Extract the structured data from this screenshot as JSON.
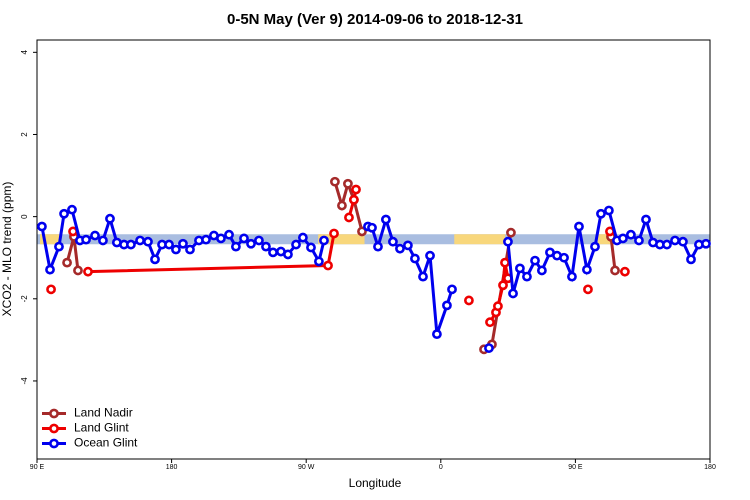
{
  "chart_data": {
    "type": "line",
    "title": "0-5N May (Ver 9)   2014-09-06 to 2018-12-31",
    "x_label": "Longitude",
    "y_label": "XCO2 - MLO trend (ppm)",
    "xlim": [
      90,
      540
    ],
    "ylim": [
      -5.9,
      4.3
    ],
    "xticks": [
      {
        "value": 90,
        "label": "90 E"
      },
      180,
      {
        "value": 270,
        "label": "90 W"
      },
      {
        "value": 360,
        "label": "0"
      },
      {
        "value": 450,
        "label": "90 E"
      },
      {
        "value": 540,
        "label": "180"
      }
    ],
    "yticks": [
      4,
      2,
      0,
      -2,
      -4
    ],
    "legend": "bottom-left",
    "reference_band": {
      "value": -0.55,
      "color": "#a9bde0",
      "highlight_color": "#f8d77c",
      "highlights": [
        [
          92,
          105
        ],
        [
          278,
          309
        ],
        [
          369,
          403
        ],
        [
          465,
          477
        ]
      ]
    },
    "series": [
      {
        "name": "Land Nadir",
        "color": "#a52a2a",
        "x": [
          110.1,
          114.7,
          117.4,
          285.9,
          289.2,
          293.9,
          297.9,
          301.9,
          307.3,
          382.2,
          388.9,
          394.2,
          406.9,
          469.8,
          473.8,
          476.5
        ],
        "values": [
          -1.12,
          -0.49,
          -1.31,
          null,
          0.85,
          0.27,
          0.8,
          0.41,
          -0.36,
          null,
          -3.23,
          -3.11,
          -0.39,
          null,
          -0.49,
          -1.31
        ]
      },
      {
        "name": "Land Glint",
        "color": "#ee0000",
        "x": [
          99.4,
          105,
          114.1,
          120,
          124.1,
          284.6,
          288.6,
          295,
          298.6,
          301.9,
          303.3,
          330,
          378.8,
          385,
          392.9,
          396.9,
          398.2,
          401.6,
          402.9,
          404.9,
          430,
          458.4,
          465,
          473.1,
          478,
          483.1
        ],
        "values": [
          -1.77,
          null,
          -0.36,
          null,
          -1.34,
          -1.19,
          -0.41,
          null,
          -0.02,
          0.41,
          0.66,
          null,
          -2.04,
          null,
          -2.57,
          -2.33,
          -2.18,
          -1.67,
          -1.12,
          -1.5,
          null,
          -1.77,
          null,
          -0.36,
          null,
          -1.34
        ]
      },
      {
        "name": "Ocean Glint",
        "color": "#0000ee",
        "x": [
          93.3,
          98.7,
          104.7,
          108.1,
          113.4,
          118.7,
          122.8,
          128.8,
          134.1,
          138.8,
          143.4,
          148.2,
          152.8,
          158.9,
          164.2,
          168.9,
          173.6,
          178.3,
          182.9,
          187.6,
          192.3,
          198.3,
          203.0,
          208.3,
          213.0,
          218.4,
          223.0,
          228.4,
          233.1,
          238.4,
          243.1,
          247.8,
          253.1,
          257.8,
          263.2,
          267.8,
          273.2,
          278.5,
          281.9,
          300,
          311.3,
          314.0,
          318.0,
          323.3,
          328.0,
          332.7,
          338.0,
          342.7,
          348.1,
          352.8,
          357.4,
          364.1,
          367.5,
          380,
          392.2,
          400,
          404.9,
          408.3,
          412.9,
          417.6,
          423.0,
          427.6,
          433.0,
          437.7,
          442.4,
          447.7,
          452.4,
          457.7,
          463.1,
          467.1,
          472.4,
          477.8,
          481.8,
          487.1,
          492.5,
          497.2,
          501.9,
          506.5,
          511.2,
          516.6,
          521.9,
          527.3,
          532.6,
          537.3
        ],
        "values": [
          -0.24,
          -1.29,
          -0.73,
          0.07,
          0.17,
          -0.58,
          -0.56,
          -0.46,
          -0.58,
          -0.05,
          -0.63,
          -0.68,
          -0.68,
          -0.58,
          -0.61,
          -1.04,
          -0.68,
          -0.68,
          -0.8,
          -0.66,
          -0.8,
          -0.58,
          -0.56,
          -0.46,
          -0.53,
          -0.44,
          -0.73,
          -0.53,
          -0.66,
          -0.58,
          -0.73,
          -0.87,
          -0.85,
          -0.92,
          -0.68,
          -0.51,
          -0.75,
          -1.09,
          -0.58,
          null,
          -0.24,
          -0.27,
          -0.73,
          -0.07,
          -0.61,
          -0.78,
          -0.7,
          -1.02,
          -1.46,
          -0.95,
          -2.86,
          -2.16,
          -1.77,
          null,
          -3.2,
          null,
          -0.61,
          -1.87,
          -1.26,
          -1.46,
          -1.07,
          -1.31,
          -0.87,
          -0.95,
          -1.0,
          -1.46,
          -0.24,
          -1.29,
          -0.73,
          0.07,
          0.15,
          -0.58,
          -0.53,
          -0.44,
          -0.58,
          -0.07,
          -0.63,
          -0.68,
          -0.68,
          -0.58,
          -0.61,
          -1.04,
          -0.68,
          -0.66
        ]
      }
    ]
  }
}
